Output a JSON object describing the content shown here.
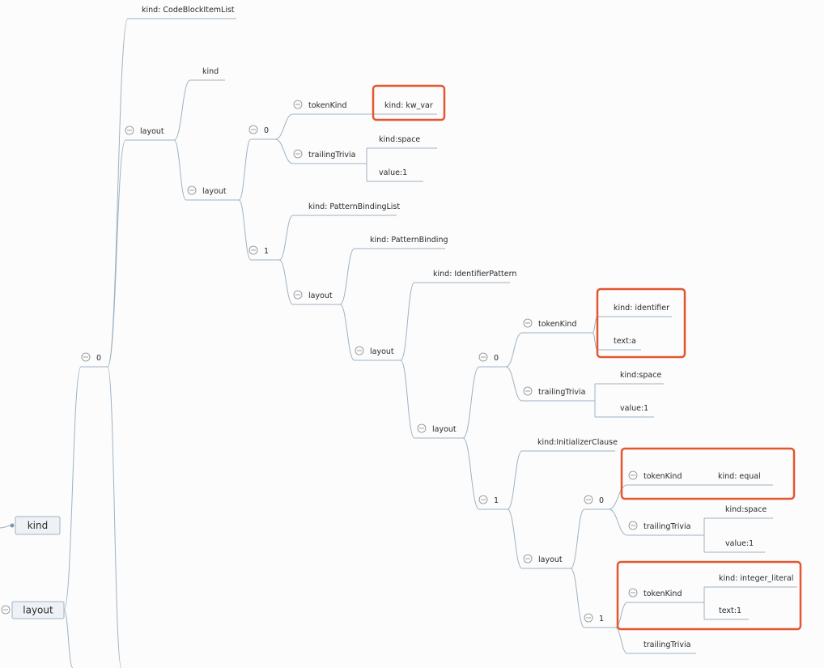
{
  "colors": {
    "edge": "#9fb2c2",
    "highlight": "#e2572f",
    "box_fill": "#eef2f6"
  },
  "root_boxes": [
    {
      "id": "kindbox",
      "label": "kind"
    },
    {
      "id": "layoutbox",
      "label": "layout",
      "collapsible": true
    }
  ],
  "nodes": [
    {
      "id": "n0",
      "label": "0",
      "collapsible": true
    },
    {
      "id": "cbil",
      "label": "kind: CodeBlockItemList"
    },
    {
      "id": "lay2",
      "label": "layout",
      "collapsible": true
    },
    {
      "id": "kind2",
      "label": "kind"
    },
    {
      "id": "lay3",
      "label": "layout",
      "collapsible": true
    },
    {
      "id": "a0",
      "label": "0",
      "collapsible": true
    },
    {
      "id": "tk1",
      "label": "tokenKind",
      "collapsible": true
    },
    {
      "id": "kwvar",
      "label": "kind: kw_var"
    },
    {
      "id": "tt1",
      "label": "trailingTrivia",
      "collapsible": true
    },
    {
      "id": "sp1",
      "label": "kind:space"
    },
    {
      "id": "v1",
      "label": "value:1"
    },
    {
      "id": "a1",
      "label": "1",
      "collapsible": true
    },
    {
      "id": "pbl",
      "label": "kind: PatternBindingList"
    },
    {
      "id": "lay5",
      "label": "layout",
      "collapsible": true
    },
    {
      "id": "pb",
      "label": "kind: PatternBinding"
    },
    {
      "id": "lay6",
      "label": "layout",
      "collapsible": true
    },
    {
      "id": "ip",
      "label": "kind: IdentifierPattern"
    },
    {
      "id": "lay7",
      "label": "layout",
      "collapsible": true
    },
    {
      "id": "b0",
      "label": "0",
      "collapsible": true
    },
    {
      "id": "tk2",
      "label": "tokenKind",
      "collapsible": true
    },
    {
      "id": "ident",
      "label": "kind: identifier"
    },
    {
      "id": "texta",
      "label": "text:a"
    },
    {
      "id": "tt2",
      "label": "trailingTrivia",
      "collapsible": true
    },
    {
      "id": "sp2",
      "label": "kind:space"
    },
    {
      "id": "v2",
      "label": "value:1"
    },
    {
      "id": "b1",
      "label": "1",
      "collapsible": true
    },
    {
      "id": "ic",
      "label": "kind:InitializerClause"
    },
    {
      "id": "lay9",
      "label": "layout",
      "collapsible": true
    },
    {
      "id": "c0",
      "label": "0",
      "collapsible": true
    },
    {
      "id": "tk3",
      "label": "tokenKind",
      "collapsible": true
    },
    {
      "id": "eq",
      "label": "kind: equal"
    },
    {
      "id": "tt3",
      "label": "trailingTrivia",
      "collapsible": true
    },
    {
      "id": "sp3",
      "label": "kind:space"
    },
    {
      "id": "v3",
      "label": "value:1"
    },
    {
      "id": "c1",
      "label": "1",
      "collapsible": true
    },
    {
      "id": "tk4",
      "label": "tokenKind",
      "collapsible": true
    },
    {
      "id": "il",
      "label": "kind: integer_literal"
    },
    {
      "id": "t1",
      "label": "text:1"
    },
    {
      "id": "tt4",
      "label": "trailingTrivia"
    }
  ]
}
